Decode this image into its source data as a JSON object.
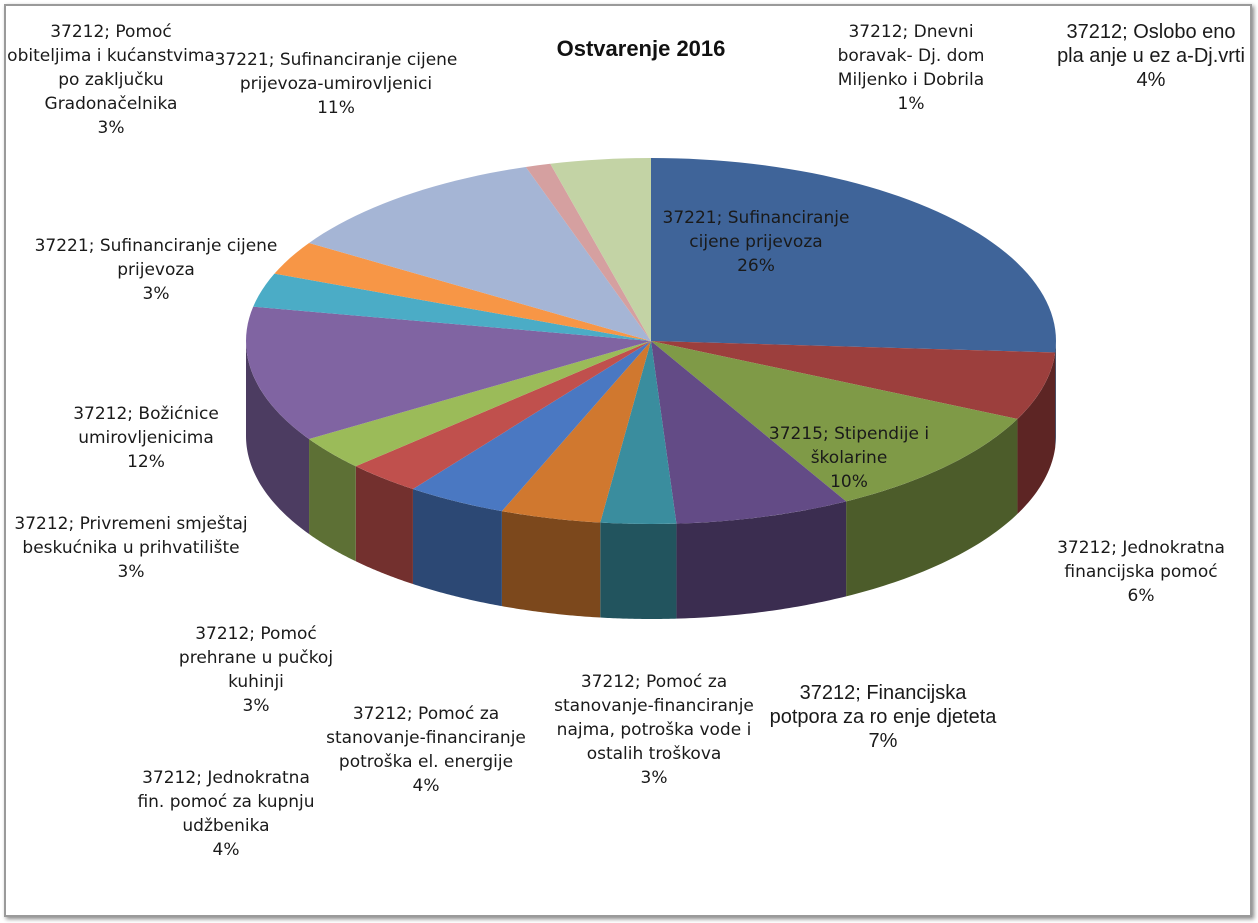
{
  "chart_data": {
    "type": "pie",
    "title": "Ostvarenje 2016",
    "categories": [
      "37221; Sufinanciranje cijene prijevoza",
      "37212; Jednokratna financijska pomoć",
      "37215; Stipendije i školarine",
      "37212; Financijska potpora za ro enje djeteta",
      "37212; Pomoć za stanovanje-financiranje najma, potroška vode i ostalih troškova",
      "37212; Pomoć za stanovanje-financiranje potroška el. energije",
      "37212; Jednokratna fin. pomoć za kupnju udžbenika",
      "37212; Pomoć prehrane u pučkoj kuhinji",
      "37212; Privremeni smještaj beskućnika u prihvatilište",
      "37212; Božićnice umirovljenicima",
      "37221; Sufinanciranje cijene prijevoza",
      "37212; Pomoć obiteljima i kućanstvima po zaključku Gradonačelnika",
      "37221; Sufinanciranje cijene prijevoza-umirovljenici",
      "37212; Dnevni boravak- Dj. dom Miljenko i Dobrila",
      "37212; Oslobo eno pla anje u ez a-Dj.vrti"
    ],
    "values": [
      26,
      6,
      10,
      7,
      3,
      4,
      4,
      3,
      3,
      12,
      3,
      3,
      11,
      1,
      4
    ],
    "value_labels": [
      "26%",
      "6%",
      "10%",
      "7%",
      "3%",
      "4%",
      "4%",
      "3%",
      "3%",
      "12%",
      "3%",
      "3%",
      "11%",
      "1%",
      "4%"
    ],
    "colors": [
      "#3f6499",
      "#9c3f3d",
      "#7f9a47",
      "#634b86",
      "#3a8d9e",
      "#d0782f",
      "#4a78c2",
      "#c0504d",
      "#9bbb59",
      "#8064a2",
      "#4bacc6",
      "#f79646",
      "#a5b5d5",
      "#d5a0a0",
      "#c3d3a5"
    ]
  }
}
